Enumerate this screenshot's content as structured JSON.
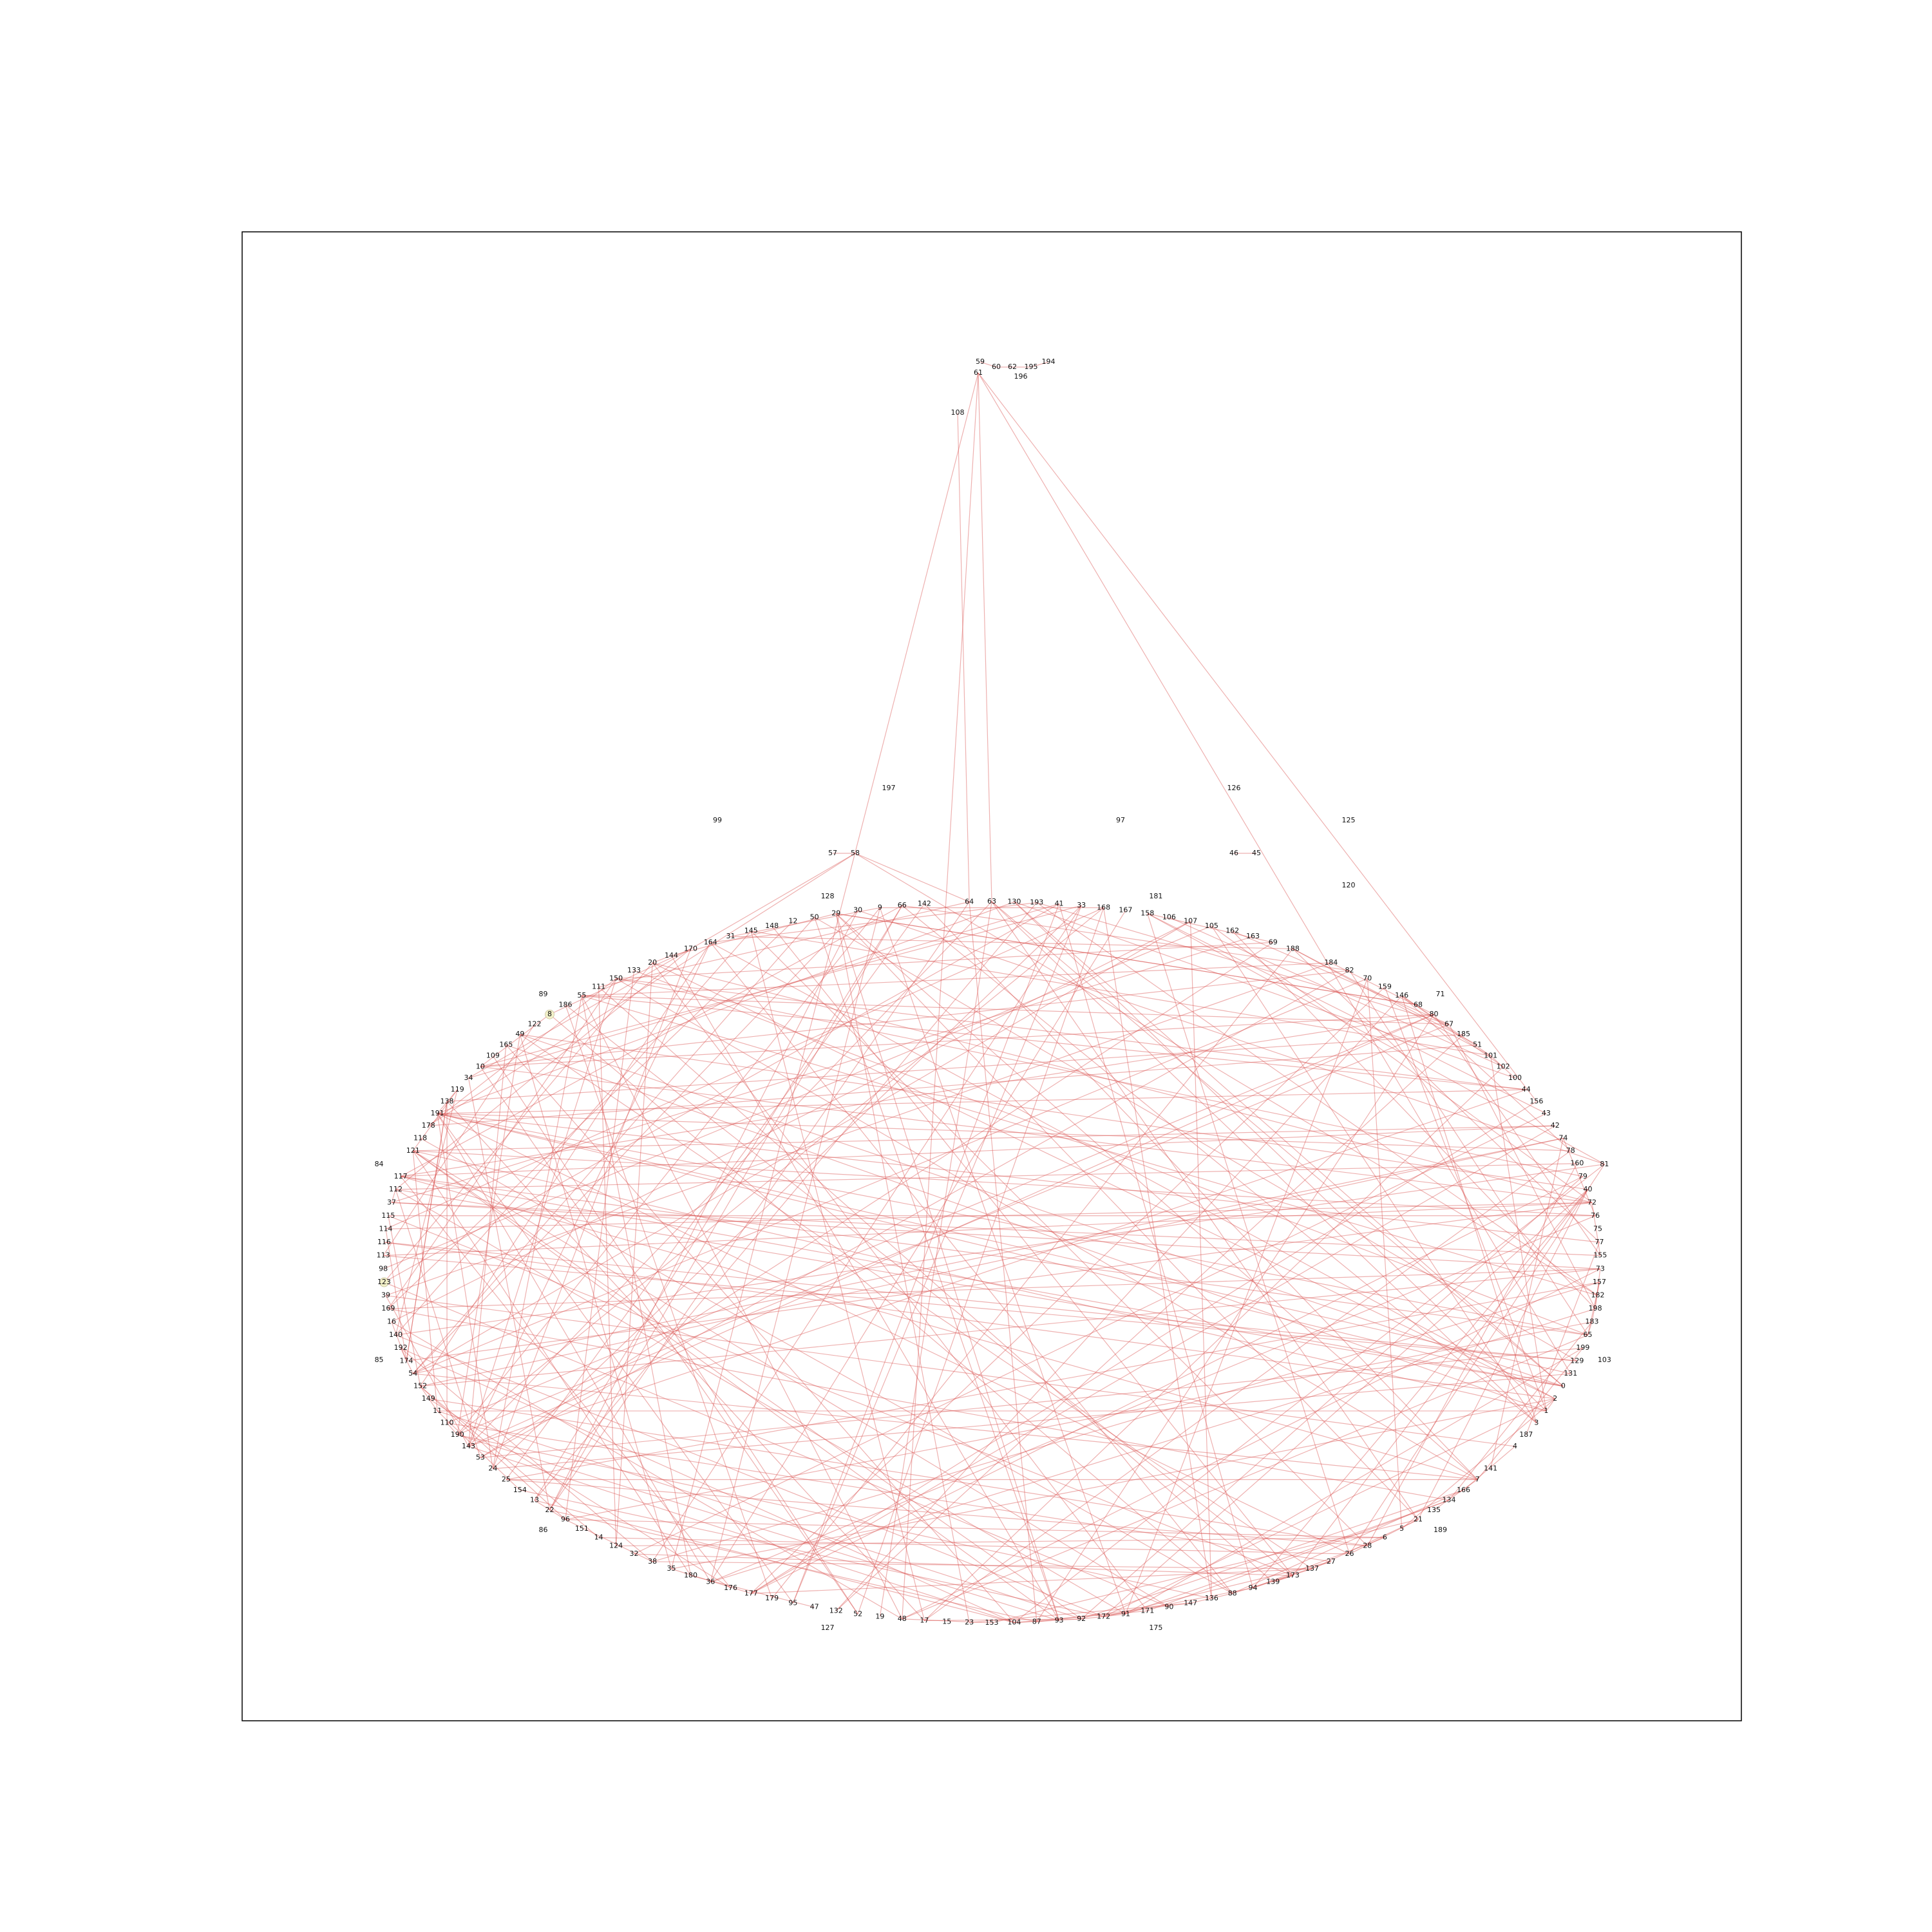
{
  "colors": {
    "edge": "#d9534f",
    "frame": "#000000",
    "label": "#111111",
    "highlight": "#f2f0c8"
  },
  "graph": {
    "ring_order": [
      "63",
      "130",
      "193",
      "41",
      "33",
      "168",
      "167",
      "158",
      "106",
      "107",
      "105",
      "162",
      "163",
      "69",
      "188",
      "61",
      "184",
      "82",
      "70",
      "159",
      "146",
      "68",
      "80",
      "67",
      "185",
      "51",
      "101",
      "102",
      "100",
      "44",
      "156",
      "43",
      "42",
      "74",
      "78",
      "160",
      "79",
      "40",
      "72",
      "76",
      "75",
      "77",
      "155",
      "73",
      "157",
      "182",
      "198",
      "183",
      "65",
      "199",
      "129",
      "131",
      "0",
      "2",
      "1",
      "3",
      "187",
      "4",
      "191",
      "141",
      "7",
      "166",
      "134",
      "135",
      "21",
      "5",
      "6",
      "28",
      "26",
      "27",
      "137",
      "173",
      "139",
      "94",
      "88",
      "136",
      "147",
      "90",
      "171",
      "91",
      "172",
      "92",
      "93",
      "87",
      "104",
      "153",
      "23",
      "15",
      "17",
      "48",
      "19",
      "52",
      "132",
      "47",
      "95",
      "179",
      "177",
      "176",
      "36",
      "180",
      "35",
      "38",
      "32",
      "124",
      "14",
      "151",
      "96",
      "22",
      "13",
      "154",
      "25",
      "24",
      "53",
      "143",
      "190",
      "110",
      "11",
      "149",
      "152",
      "54",
      "174",
      "192",
      "140",
      "16",
      "169",
      "39",
      "123",
      "98",
      "113",
      "116",
      "114",
      "115",
      "37",
      "112",
      "117",
      "58",
      "121",
      "118",
      "178",
      "191",
      "138",
      "119",
      "34",
      "10",
      "109",
      "165",
      "49",
      "122",
      "8",
      "186",
      "55",
      "111",
      "150",
      "133",
      "20",
      "144",
      "170",
      "164",
      "31",
      "145",
      "148",
      "12",
      "50",
      "29",
      "30",
      "9",
      "66",
      "142",
      "81",
      "64"
    ],
    "outer_labels": [
      "181",
      "71",
      "81",
      "103",
      "189",
      "175",
      "127",
      "86",
      "85",
      "84",
      "89",
      "128"
    ],
    "top_cluster": [
      "59",
      "60",
      "62",
      "195",
      "194",
      "61",
      "196",
      "108"
    ],
    "isolated": [
      "197",
      "99",
      "97",
      "126",
      "125",
      "57",
      "58",
      "46",
      "45",
      "120"
    ],
    "highlighted": [
      "8",
      "123"
    ]
  }
}
